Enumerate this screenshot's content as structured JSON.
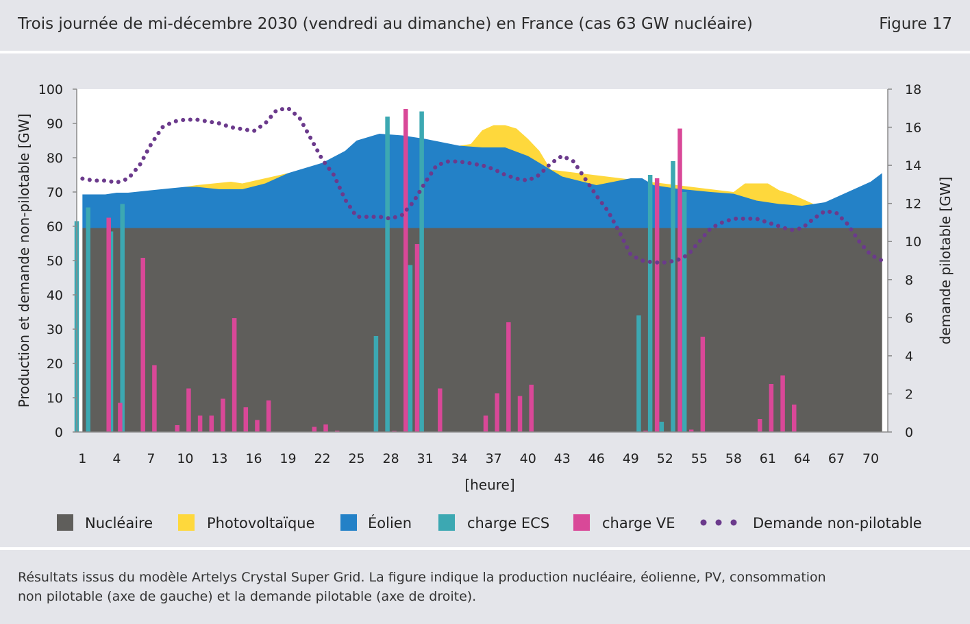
{
  "header": {
    "title": "Trois journée de mi-décembre 2030 (vendredi au dimanche) en France (cas 63 GW nucléaire)",
    "figure": "Figure 17"
  },
  "footer": {
    "line1": "Résultats issus du modèle Artelys Crystal Super Grid. La figure indique la production nucléaire, éolienne, PV, consommation",
    "line2": "non pilotable (axe de gauche) et la demande pilotable (axe de droite)."
  },
  "colors": {
    "background": "#e4e5ea",
    "plot_bg": "#ffffff",
    "nucleaire": "#5f5e5b",
    "pv": "#fed83c",
    "eolien": "#2381c7",
    "ecs": "#3ca8b2",
    "ve": "#d94898",
    "demande": "#6b3a8c"
  },
  "chart_data": {
    "type": "area",
    "title": "Trois journée de mi-décembre 2030 (vendredi au dimanche) en France (cas 63 GW nucléaire)",
    "xlabel": "[heure]",
    "ylabel": "Production et demande non-pilotable [GW]",
    "y2label": "demande pilotable [GW]",
    "xlim": [
      0.5,
      71.5
    ],
    "ylim": [
      0,
      100
    ],
    "y2lim": [
      0,
      18
    ],
    "xticks": [
      "1",
      "4",
      "7",
      "10",
      "13",
      "16",
      "19",
      "22",
      "25",
      "28",
      "31",
      "34",
      "37",
      "40",
      "43",
      "46",
      "49",
      "52",
      "55",
      "58",
      "61",
      "64",
      "67",
      "70"
    ],
    "yticks": [
      "0",
      "10",
      "20",
      "30",
      "40",
      "50",
      "60",
      "70",
      "80",
      "90",
      "100"
    ],
    "y2ticks": [
      "0",
      "2",
      "4",
      "6",
      "8",
      "10",
      "12",
      "14",
      "16",
      "18"
    ],
    "legend": {
      "nucleaire": "Nucléaire",
      "pv": "Photovoltaïque",
      "eolien": "Éolien",
      "ecs": "charge ECS",
      "ve": "charge VE",
      "demande": "Demande non-pilotable"
    },
    "nucleaire": 59.5,
    "wind_top": [
      [
        1,
        69.3
      ],
      [
        3,
        69.3
      ],
      [
        4,
        69.8
      ],
      [
        5,
        69.8
      ],
      [
        7,
        70.5
      ],
      [
        10,
        71.5
      ],
      [
        11,
        71.5
      ],
      [
        13,
        70.8
      ],
      [
        15,
        70.8
      ],
      [
        17,
        72.5
      ],
      [
        19,
        75.5
      ],
      [
        22,
        78.5
      ],
      [
        24,
        82
      ],
      [
        25,
        85
      ],
      [
        27,
        87
      ],
      [
        29,
        86.5
      ],
      [
        31,
        85.5
      ],
      [
        34,
        83.5
      ],
      [
        36,
        83
      ],
      [
        38,
        83
      ],
      [
        40,
        80.5
      ],
      [
        42,
        76.5
      ],
      [
        43,
        74.5
      ],
      [
        46,
        72
      ],
      [
        49,
        74
      ],
      [
        50,
        74
      ],
      [
        51,
        72
      ],
      [
        53,
        71
      ],
      [
        56,
        70
      ],
      [
        58,
        69.5
      ],
      [
        60,
        67.5
      ],
      [
        62,
        66.5
      ],
      [
        64,
        66
      ],
      [
        66,
        67
      ],
      [
        68,
        70
      ],
      [
        70,
        73
      ],
      [
        71,
        75.5
      ]
    ],
    "pv_top": [
      [
        10,
        71.5
      ],
      [
        11,
        72
      ],
      [
        14,
        73
      ],
      [
        15,
        72.5
      ],
      [
        17,
        74
      ],
      [
        19,
        75.5
      ],
      [
        34,
        83.5
      ],
      [
        35,
        84
      ],
      [
        36,
        88
      ],
      [
        37,
        89.5
      ],
      [
        38,
        89.5
      ],
      [
        39,
        88.5
      ],
      [
        40,
        85.5
      ],
      [
        41,
        82
      ],
      [
        42,
        76.5
      ],
      [
        58,
        70
      ],
      [
        59,
        72.5
      ],
      [
        61,
        72.5
      ],
      [
        62,
        70.5
      ],
      [
        63,
        69.5
      ],
      [
        64,
        68
      ],
      [
        65,
        66.5
      ]
    ],
    "ecs": [
      [
        0.5,
        61.5
      ],
      [
        1.5,
        65.5
      ],
      [
        3.5,
        58.5
      ],
      [
        4.5,
        66.5
      ],
      [
        26.7,
        28
      ],
      [
        27.7,
        92
      ],
      [
        29.7,
        48.7
      ],
      [
        30.7,
        93.5
      ],
      [
        49.7,
        34
      ],
      [
        50.7,
        75
      ],
      [
        51.7,
        3
      ],
      [
        52.7,
        79
      ],
      [
        53.7,
        70
      ]
    ],
    "ve": [
      [
        3.3,
        62.5
      ],
      [
        4.3,
        8.5
      ],
      [
        6.3,
        50.8
      ],
      [
        7.3,
        19.5
      ],
      [
        9.3,
        2
      ],
      [
        10.3,
        12.7
      ],
      [
        11.3,
        4.8
      ],
      [
        12.3,
        4.8
      ],
      [
        13.3,
        9.7
      ],
      [
        14.3,
        33.2
      ],
      [
        15.3,
        7.2
      ],
      [
        16.3,
        3.5
      ],
      [
        17.3,
        9.2
      ],
      [
        21.3,
        1.5
      ],
      [
        22.3,
        2.2
      ],
      [
        23.3,
        0.4
      ],
      [
        28.3,
        0.3
      ],
      [
        29.3,
        94.2
      ],
      [
        30.3,
        54.8
      ],
      [
        32.3,
        12.7
      ],
      [
        36.3,
        4.8
      ],
      [
        37.3,
        11.3
      ],
      [
        38.3,
        32
      ],
      [
        39.3,
        10.5
      ],
      [
        40.3,
        13.8
      ],
      [
        50.3,
        0.4
      ],
      [
        51.3,
        74
      ],
      [
        53.3,
        88.5
      ],
      [
        54.3,
        0.7
      ],
      [
        55.3,
        27.8
      ],
      [
        60.3,
        3.8
      ],
      [
        61.3,
        14
      ],
      [
        62.3,
        16.5
      ],
      [
        63.3,
        8
      ]
    ],
    "demande_pilotable": [
      [
        1,
        13.3
      ],
      [
        2,
        13.2
      ],
      [
        3,
        13.2
      ],
      [
        4,
        13.1
      ],
      [
        5,
        13.3
      ],
      [
        6,
        14
      ],
      [
        7,
        15.1
      ],
      [
        8,
        16
      ],
      [
        9,
        16.3
      ],
      [
        10,
        16.4
      ],
      [
        11,
        16.4
      ],
      [
        12,
        16.3
      ],
      [
        13,
        16.2
      ],
      [
        14,
        16
      ],
      [
        15,
        15.9
      ],
      [
        16,
        15.8
      ],
      [
        17,
        16.2
      ],
      [
        18,
        16.9
      ],
      [
        19,
        17
      ],
      [
        20,
        16.5
      ],
      [
        21,
        15.4
      ],
      [
        22,
        14.3
      ],
      [
        23,
        13.5
      ],
      [
        24,
        12.2
      ],
      [
        25,
        11.3
      ],
      [
        26,
        11.3
      ],
      [
        27,
        11.3
      ],
      [
        28,
        11.2
      ],
      [
        29,
        11.4
      ],
      [
        30,
        12.1
      ],
      [
        31,
        13.1
      ],
      [
        32,
        14
      ],
      [
        33,
        14.2
      ],
      [
        34,
        14.2
      ],
      [
        35,
        14.1
      ],
      [
        36,
        14
      ],
      [
        37,
        13.8
      ],
      [
        38,
        13.5
      ],
      [
        39,
        13.3
      ],
      [
        40,
        13.2
      ],
      [
        41,
        13.5
      ],
      [
        42,
        14.1
      ],
      [
        43,
        14.5
      ],
      [
        44,
        14.2
      ],
      [
        45,
        13.3
      ],
      [
        46,
        12.4
      ],
      [
        47,
        11.6
      ],
      [
        48,
        10.5
      ],
      [
        49,
        9.3
      ],
      [
        50,
        9
      ],
      [
        51,
        8.9
      ],
      [
        52,
        8.9
      ],
      [
        53,
        9
      ],
      [
        54,
        9.3
      ],
      [
        55,
        10
      ],
      [
        56,
        10.7
      ],
      [
        57,
        11
      ],
      [
        58,
        11.2
      ],
      [
        59,
        11.2
      ],
      [
        60,
        11.2
      ],
      [
        61,
        11
      ],
      [
        62,
        10.8
      ],
      [
        63,
        10.6
      ],
      [
        64,
        10.7
      ],
      [
        65,
        11.2
      ],
      [
        66,
        11.6
      ],
      [
        67,
        11.5
      ],
      [
        68,
        10.9
      ],
      [
        69,
        10
      ],
      [
        70,
        9.3
      ],
      [
        71,
        9
      ]
    ]
  }
}
